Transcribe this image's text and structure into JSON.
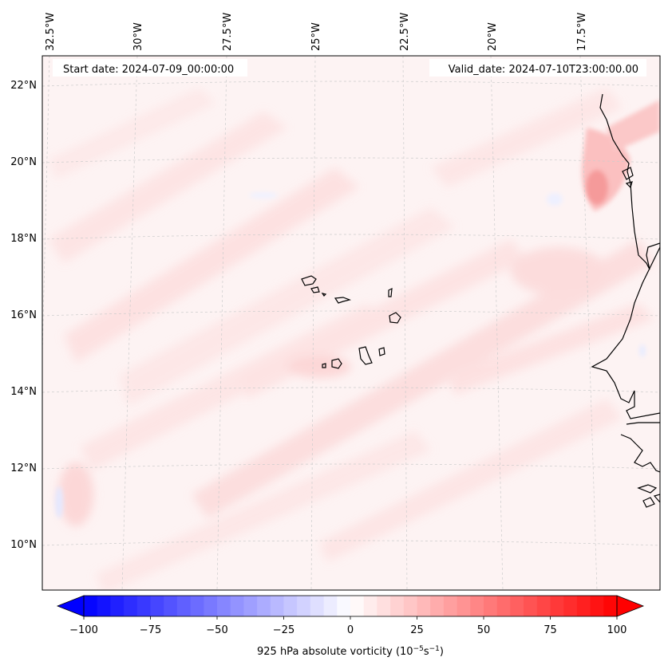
{
  "map": {
    "start_date_label": "Start date: 2024-07-09_00:00:00",
    "valid_date_label": "Valid_date: 2024-07-10T23:00:00.00",
    "lon_labels": [
      "32.5°W",
      "30°W",
      "27.5°W",
      "25°W",
      "22.5°W",
      "20°W",
      "17.5°W"
    ],
    "lat_labels": [
      "22°N",
      "20°N",
      "18°N",
      "16°N",
      "14°N",
      "12°N",
      "10°N"
    ],
    "land_features": [
      "Cape Verde islands",
      "West African coastline (Mauritania, Senegal, Gambia, Guinea-Bissau)"
    ]
  },
  "colorbar": {
    "label_prefix": "925 hPa absolute vorticity (10",
    "label_exp1": "−5",
    "label_mid": "s",
    "label_exp2": "−1",
    "label_suffix": ")",
    "ticks": [
      "−100",
      "−75",
      "−50",
      "−25",
      "0",
      "25",
      "50",
      "75",
      "100"
    ],
    "min": -100,
    "max": 100,
    "step": 5,
    "cmap_low": "#0000ff",
    "cmap_mid": "#ffffff",
    "cmap_high": "#ff0000"
  },
  "colors": {
    "field_background": "#fdf3f3",
    "positive_band": "#fde3e3",
    "strong_positive": "#f9a8a8",
    "negative_patch": "#eef0ff",
    "coastline": "#000000",
    "gridline": "#cccccc"
  }
}
